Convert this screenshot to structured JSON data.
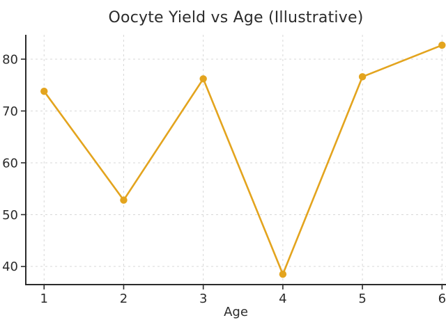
{
  "chart_data": {
    "type": "line",
    "title": "Oocyte Yield vs Age (Illustrative)",
    "xlabel": "Age",
    "ylabel": "",
    "x": [
      1,
      2,
      3,
      4,
      5,
      6
    ],
    "series": [
      {
        "name": "Oocyte Yield",
        "values": [
          73.8,
          52.8,
          76.2,
          38.5,
          76.6,
          82.7
        ]
      }
    ],
    "xticks": [
      "1",
      "2",
      "3",
      "4",
      "5",
      "6"
    ],
    "yticks": [
      "40",
      "50",
      "60",
      "70",
      "80"
    ],
    "xlim": [
      0.77,
      6.05
    ],
    "ylim": [
      36.5,
      84.7
    ],
    "grid": true,
    "grid_style": "dashed",
    "legend": "none",
    "colors": {
      "line": "#E3A41E",
      "marker": "#E3A41E",
      "axis": "#2b2b2b",
      "grid": "#d7d7d7",
      "background": "#ffffff"
    }
  }
}
